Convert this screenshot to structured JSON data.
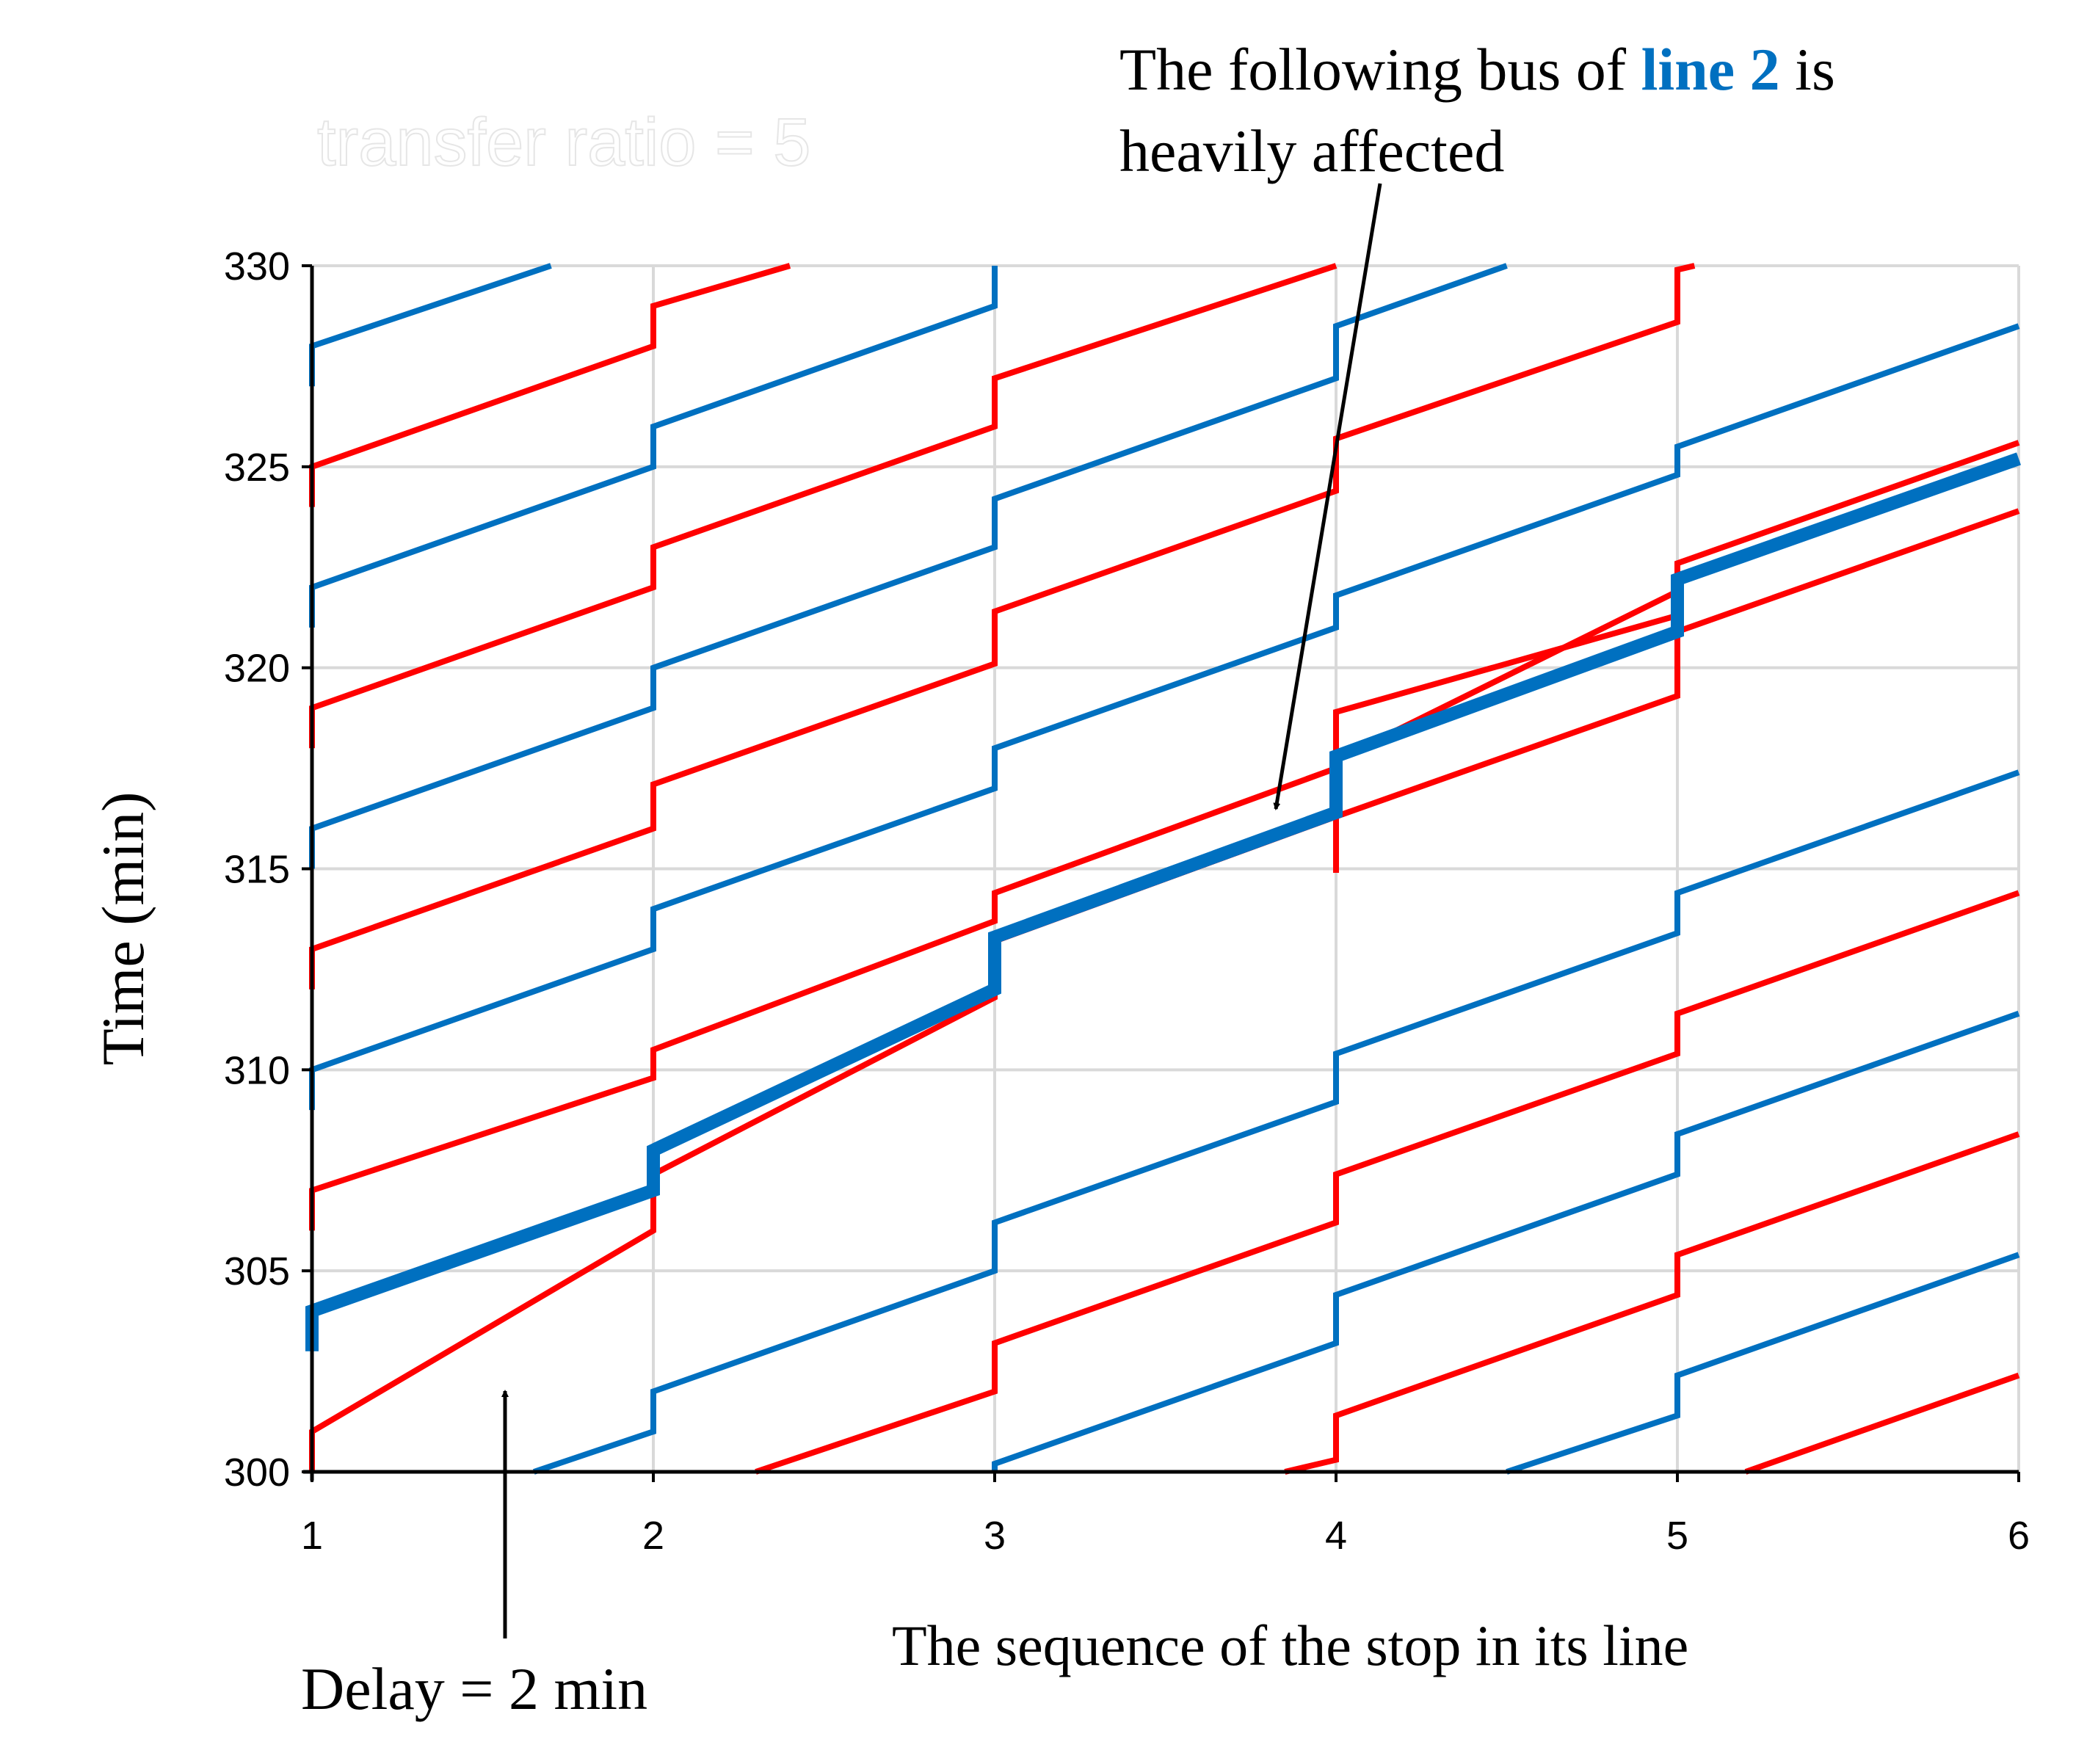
{
  "chart_data": {
    "type": "line",
    "title": "transfer ratio = 5",
    "xlabel": "The sequence of the stop in its line",
    "ylabel": "Time (min)",
    "x_ticks": [
      "1",
      "2",
      "3",
      "4",
      "5",
      "6"
    ],
    "y_ticks": [
      "300",
      "305",
      "310",
      "315",
      "320",
      "325",
      "330"
    ],
    "xlim": [
      1,
      6
    ],
    "ylim": [
      300,
      330
    ],
    "grid": true,
    "colors": {
      "line_1": "#ff0000",
      "line_2": "#0070c0"
    },
    "series": [
      {
        "color": "line_1",
        "points": [
          [
            1,
            300
          ],
          [
            1,
            301
          ],
          [
            2,
            306
          ],
          [
            2,
            307.4
          ],
          [
            3,
            311.8
          ],
          [
            3,
            313.2
          ],
          [
            4,
            316.3
          ],
          [
            4,
            317.7
          ],
          [
            5,
            321.9
          ],
          [
            5,
            322.6
          ],
          [
            6,
            325.6
          ]
        ]
      },
      {
        "color": "line_1",
        "points": [
          [
            1,
            306
          ],
          [
            1,
            307
          ],
          [
            2,
            309.8
          ],
          [
            2,
            310.5
          ],
          [
            3,
            313.7
          ],
          [
            3,
            314.4
          ],
          [
            4,
            317.5
          ],
          [
            4,
            318.9
          ],
          [
            5,
            321.3
          ],
          [
            5,
            321.6
          ]
        ]
      },
      {
        "color": "line_1",
        "points": [
          [
            1,
            312
          ],
          [
            1,
            313
          ],
          [
            2,
            316
          ],
          [
            2,
            317.1
          ],
          [
            3,
            320.1
          ],
          [
            3,
            321.4
          ],
          [
            4,
            324.4
          ],
          [
            4,
            325.7
          ],
          [
            5,
            328.6
          ],
          [
            5,
            329.9
          ],
          [
            5.05,
            330
          ]
        ]
      },
      {
        "color": "line_1",
        "points": [
          [
            1,
            318
          ],
          [
            1,
            319
          ],
          [
            2,
            322
          ],
          [
            2,
            323
          ],
          [
            3,
            326
          ],
          [
            3,
            327.2
          ],
          [
            4,
            330
          ]
        ]
      },
      {
        "color": "line_1",
        "points": [
          [
            1,
            324
          ],
          [
            1,
            325
          ],
          [
            2,
            328
          ],
          [
            2,
            329
          ],
          [
            2.4,
            330
          ]
        ]
      },
      {
        "color": "line_1",
        "points": [
          [
            2.3,
            300
          ],
          [
            3,
            302
          ],
          [
            3,
            303.2
          ],
          [
            4,
            306.2
          ],
          [
            4,
            307.4
          ],
          [
            5,
            310.4
          ],
          [
            5,
            311.4
          ],
          [
            6,
            314.4
          ]
        ]
      },
      {
        "color": "line_1",
        "points": [
          [
            3.85,
            300
          ],
          [
            4,
            300.3
          ],
          [
            4,
            301.4
          ],
          [
            5,
            304.4
          ],
          [
            5,
            305.4
          ],
          [
            6,
            308.4
          ]
        ]
      },
      {
        "color": "line_1",
        "points": [
          [
            5.2,
            300
          ],
          [
            6,
            302.4
          ]
        ]
      },
      {
        "color": "line_1",
        "points": [
          [
            4,
            314.9
          ],
          [
            4,
            316.3
          ],
          [
            5,
            319.3
          ],
          [
            5,
            320.9
          ],
          [
            6,
            323.9
          ]
        ]
      },
      {
        "color": "line_2",
        "highlighted": true,
        "name": "line 2",
        "points": [
          [
            1,
            303
          ],
          [
            1,
            304
          ],
          [
            2,
            307
          ],
          [
            2,
            308
          ],
          [
            3,
            312
          ],
          [
            3,
            313.3
          ],
          [
            4,
            316.4
          ],
          [
            4,
            317.8
          ],
          [
            5,
            320.9
          ],
          [
            5,
            322.2
          ],
          [
            6,
            325.2
          ]
        ]
      },
      {
        "color": "line_2",
        "points": [
          [
            1,
            309
          ],
          [
            1,
            310
          ],
          [
            2,
            313
          ],
          [
            2,
            314
          ],
          [
            3,
            317
          ],
          [
            3,
            318
          ],
          [
            4,
            321
          ],
          [
            4,
            321.8
          ],
          [
            5,
            324.8
          ],
          [
            5,
            325.5
          ],
          [
            6,
            328.5
          ]
        ]
      },
      {
        "color": "line_2",
        "points": [
          [
            1,
            315
          ],
          [
            1,
            316
          ],
          [
            2,
            319
          ],
          [
            2,
            320
          ],
          [
            3,
            323
          ],
          [
            3,
            324.2
          ],
          [
            4,
            327.2
          ],
          [
            4,
            328.5
          ],
          [
            4.5,
            330
          ]
        ]
      },
      {
        "color": "line_2",
        "points": [
          [
            1,
            321
          ],
          [
            1,
            322
          ],
          [
            2,
            325
          ],
          [
            2,
            326
          ],
          [
            3,
            329
          ],
          [
            3,
            330
          ]
        ]
      },
      {
        "color": "line_2",
        "points": [
          [
            1,
            327
          ],
          [
            1,
            328
          ],
          [
            1.7,
            330
          ]
        ]
      },
      {
        "color": "line_2",
        "points": [
          [
            1.65,
            300
          ],
          [
            2,
            301
          ],
          [
            2,
            302
          ],
          [
            3,
            305
          ],
          [
            3,
            306.2
          ],
          [
            4,
            309.2
          ],
          [
            4,
            310.4
          ],
          [
            5,
            313.4
          ],
          [
            5,
            314.4
          ],
          [
            6,
            317.4
          ]
        ]
      },
      {
        "color": "line_2",
        "points": [
          [
            3,
            300
          ],
          [
            3,
            300.2
          ],
          [
            4,
            303.2
          ],
          [
            4,
            304.4
          ],
          [
            5,
            307.4
          ],
          [
            5,
            308.4
          ],
          [
            6,
            311.4
          ]
        ]
      },
      {
        "color": "line_2",
        "points": [
          [
            4.5,
            300
          ],
          [
            5,
            301.4
          ],
          [
            5,
            302.4
          ],
          [
            6,
            305.4
          ]
        ]
      }
    ],
    "annotations": [
      {
        "text_parts": [
          "The following bus of ",
          "line 2",
          " is"
        ],
        "text_line2": "heavily affected",
        "highlight": "line 2"
      },
      {
        "text": "Delay = 2 min"
      }
    ]
  }
}
